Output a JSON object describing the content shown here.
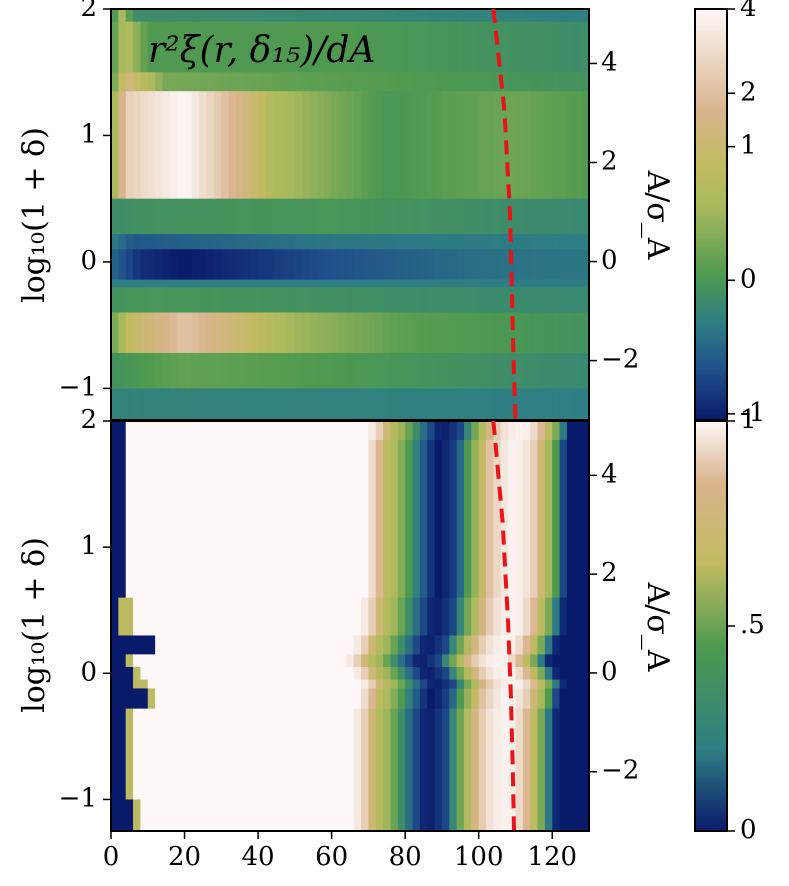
{
  "chart_data": [
    {
      "type": "heatmap",
      "panel": "top",
      "title": "r²ξ(r, δ₁₅)/dA",
      "ylabel": "log₁₀(1 + δ)",
      "y2label": "A/σ_A",
      "xlim": [
        0,
        130
      ],
      "ylim": [
        -1.25,
        2.0
      ],
      "y2lim": [
        -3.2,
        5.1
      ],
      "yticks": [
        -1,
        0,
        1,
        2
      ],
      "ytick_labels": [
        "−1",
        "0",
        "1",
        "2"
      ],
      "y2ticks": [
        -2,
        0,
        2,
        4
      ],
      "y2tick_labels": [
        "−2",
        "0",
        "2",
        "4"
      ],
      "colorbar": {
        "ticks": [
          -1,
          0,
          1,
          2,
          4
        ],
        "tick_labels": [
          "-1",
          "0",
          "1",
          "2",
          "4"
        ],
        "range": [
          -1.25,
          4
        ],
        "colors": [
          "#0a1a6b",
          "#2f7f83",
          "#4e9a50",
          "#c2bb62",
          "#d9b48c",
          "#fdf7f7"
        ]
      },
      "rows": [
        {
          "y0": 1.9,
          "y1": 2.0,
          "profile": [
            [
              0,
              0.2
            ],
            [
              3,
              1.5
            ],
            [
              6,
              0.3
            ],
            [
              130,
              0.0
            ]
          ]
        },
        {
          "y0": 1.5,
          "y1": 1.9,
          "profile": [
            [
              0,
              0.5
            ],
            [
              4,
              1.8
            ],
            [
              10,
              0.6
            ],
            [
              60,
              0.6
            ],
            [
              130,
              0.3
            ]
          ]
        },
        {
          "y0": 1.35,
          "y1": 1.5,
          "profile": [
            [
              0,
              0.6
            ],
            [
              4,
              2.5
            ],
            [
              15,
              1.0
            ],
            [
              60,
              0.7
            ],
            [
              130,
              0.4
            ]
          ]
        },
        {
          "y0": 0.5,
          "y1": 1.35,
          "profile": [
            [
              0,
              1.0
            ],
            [
              4,
              3.2
            ],
            [
              20,
              4.0
            ],
            [
              45,
              1.6
            ],
            [
              75,
              0.5
            ],
            [
              100,
              0.8
            ],
            [
              110,
              0.9
            ],
            [
              130,
              0.6
            ]
          ]
        },
        {
          "y0": 0.22,
          "y1": 0.5,
          "profile": [
            [
              0,
              0.3
            ],
            [
              10,
              0.4
            ],
            [
              60,
              0.5
            ],
            [
              130,
              0.2
            ]
          ]
        },
        {
          "y0": 0.1,
          "y1": 0.22,
          "profile": [
            [
              0,
              0.0
            ],
            [
              6,
              -0.5
            ],
            [
              60,
              -0.1
            ],
            [
              130,
              0.0
            ]
          ]
        },
        {
          "y0": -0.14,
          "y1": 0.1,
          "profile": [
            [
              0,
              -0.3
            ],
            [
              8,
              -1.0
            ],
            [
              20,
              -1.25
            ],
            [
              60,
              -0.6
            ],
            [
              100,
              -0.2
            ],
            [
              130,
              -0.1
            ]
          ]
        },
        {
          "y0": -0.2,
          "y1": -0.14,
          "profile": [
            [
              0,
              0.0
            ],
            [
              130,
              0.0
            ]
          ]
        },
        {
          "y0": -0.4,
          "y1": -0.2,
          "profile": [
            [
              0,
              0.4
            ],
            [
              10,
              0.5
            ],
            [
              130,
              0.2
            ]
          ]
        },
        {
          "y0": -0.72,
          "y1": -0.4,
          "profile": [
            [
              0,
              0.8
            ],
            [
              5,
              2.0
            ],
            [
              20,
              3.0
            ],
            [
              50,
              1.4
            ],
            [
              80,
              0.7
            ],
            [
              130,
              0.4
            ]
          ]
        },
        {
          "y0": -1.0,
          "y1": -0.72,
          "profile": [
            [
              0,
              0.4
            ],
            [
              20,
              0.8
            ],
            [
              130,
              0.2
            ]
          ]
        },
        {
          "y0": -1.25,
          "y1": -1.0,
          "profile": [
            [
              0,
              0.1
            ],
            [
              130,
              0.0
            ]
          ]
        }
      ],
      "series": [
        {
          "type": "dashed-curve",
          "color": "#e8141a",
          "points": [
            [
              104,
              2.0
            ],
            [
              107,
              1.2
            ],
            [
              108.5,
              0.4
            ],
            [
              109,
              -0.2
            ],
            [
              109.5,
              -0.8
            ],
            [
              110,
              -1.25
            ]
          ]
        }
      ]
    },
    {
      "type": "heatmap",
      "panel": "bottom",
      "xlabel": "",
      "ylabel": "log₁₀(1 + δ)",
      "y2label": "A/σ_A",
      "xlim": [
        0,
        130
      ],
      "ylim": [
        -1.25,
        2.0
      ],
      "y2lim": [
        -3.2,
        5.1
      ],
      "xticks": [
        0,
        20,
        40,
        60,
        80,
        100,
        120
      ],
      "xtick_labels": [
        "0",
        "20",
        "40",
        "60",
        "80",
        "100",
        "120"
      ],
      "yticks": [
        -1,
        0,
        1,
        2
      ],
      "ytick_labels": [
        "−1",
        "0",
        "1",
        "2"
      ],
      "y2ticks": [
        -2,
        0,
        2,
        4
      ],
      "y2tick_labels": [
        "−2",
        "0",
        "2",
        "4"
      ],
      "colorbar": {
        "ticks": [
          0,
          0.5,
          1
        ],
        "tick_labels": [
          "0",
          ".5",
          "1"
        ],
        "range": [
          0,
          1
        ],
        "colors": [
          "#0a1a6b",
          "#2f7f83",
          "#4e9a50",
          "#c2bb62",
          "#d9b48c",
          "#fdf7f7"
        ]
      },
      "band_profile": [
        [
          0,
          0.0
        ],
        [
          1,
          1.0
        ],
        [
          66,
          1.0
        ],
        [
          69,
          0.85
        ],
        [
          72,
          0.6
        ],
        [
          75,
          0.5
        ],
        [
          78,
          0.35
        ],
        [
          81,
          0.2
        ],
        [
          84,
          0.06
        ],
        [
          86,
          0.0
        ],
        [
          88,
          0.03
        ],
        [
          91,
          0.1
        ],
        [
          94,
          0.35
        ],
        [
          97,
          0.55
        ],
        [
          100,
          0.8
        ],
        [
          103,
          0.92
        ],
        [
          106,
          0.98
        ],
        [
          109,
          0.97
        ],
        [
          112,
          0.85
        ],
        [
          115,
          0.6
        ],
        [
          118,
          0.35
        ],
        [
          120,
          0.1
        ],
        [
          121.5,
          0.0
        ],
        [
          130,
          0.0
        ]
      ],
      "rows": [
        {
          "y0": 1.85,
          "y1": 2.0,
          "shift": 4,
          "cut": 124,
          "left": 2
        },
        {
          "y0": 0.6,
          "y1": 1.85,
          "shift": 3,
          "cut": 124,
          "left": 2
        },
        {
          "y0": 0.3,
          "y1": 0.6,
          "shift": 2,
          "cut": 124,
          "left": 3
        },
        {
          "y0": 0.15,
          "y1": 0.3,
          "shift": 0,
          "cut": 126,
          "left": 5,
          "notch": [
            [
              5,
              12,
              0.0
            ],
            [
              12,
              15,
              1.0
            ]
          ]
        },
        {
          "y0": 0.05,
          "y1": 0.15,
          "shift": -2,
          "cut": 124,
          "left": 4
        },
        {
          "y0": -0.05,
          "y1": 0.05,
          "shift": 0,
          "cut": 124,
          "left": 6
        },
        {
          "y0": -0.12,
          "y1": -0.05,
          "shift": 2,
          "cut": 124,
          "left": 7
        },
        {
          "y0": -0.28,
          "y1": -0.12,
          "shift": 1,
          "cut": 126,
          "left": 10
        },
        {
          "y0": -0.6,
          "y1": -0.28,
          "shift": 0,
          "cut": 122,
          "left": 4
        },
        {
          "y0": -1.0,
          "y1": -0.6,
          "shift": 0,
          "cut": 122,
          "left": 4
        },
        {
          "y0": -1.25,
          "y1": -1.0,
          "shift": 0,
          "cut": 122,
          "left": 6
        }
      ],
      "series": [
        {
          "type": "dashed-curve",
          "color": "#e8141a",
          "points": [
            [
              104,
              2.0
            ],
            [
              106.5,
              1.2
            ],
            [
              108,
              0.4
            ],
            [
              108.8,
              -0.2
            ],
            [
              109.3,
              -0.8
            ],
            [
              109.6,
              -1.25
            ]
          ]
        }
      ]
    }
  ]
}
